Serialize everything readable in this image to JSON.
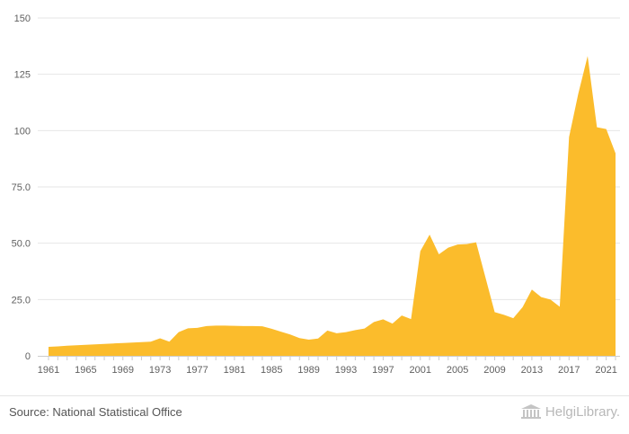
{
  "chart_data": {
    "type": "area",
    "x": [
      1961,
      1962,
      1963,
      1964,
      1965,
      1966,
      1967,
      1968,
      1969,
      1970,
      1971,
      1972,
      1973,
      1974,
      1975,
      1976,
      1977,
      1978,
      1979,
      1980,
      1981,
      1982,
      1983,
      1984,
      1985,
      1986,
      1987,
      1988,
      1989,
      1990,
      1991,
      1992,
      1993,
      1994,
      1995,
      1996,
      1997,
      1998,
      1999,
      2000,
      2001,
      2002,
      2003,
      2004,
      2005,
      2006,
      2007,
      2008,
      2009,
      2010,
      2011,
      2012,
      2013,
      2014,
      2015,
      2016,
      2017,
      2018,
      2019,
      2020,
      2021,
      2022
    ],
    "values": [
      4.0,
      4.2,
      4.5,
      4.7,
      4.9,
      5.1,
      5.3,
      5.5,
      5.7,
      5.9,
      6.1,
      6.3,
      7.8,
      6.3,
      10.5,
      12.2,
      12.4,
      13.2,
      13.4,
      13.4,
      13.3,
      13.2,
      13.2,
      13.1,
      12.0,
      10.7,
      9.5,
      7.9,
      7.2,
      7.7,
      11.2,
      10.0,
      10.5,
      11.4,
      12.1,
      15.0,
      16.2,
      14.3,
      17.9,
      16.3,
      46.5,
      53.8,
      45.1,
      48.0,
      49.4,
      49.6,
      50.4,
      34.9,
      19.4,
      18.2,
      16.7,
      21.6,
      29.4,
      26.1,
      25.0,
      21.8,
      97.1,
      116.5,
      133.1,
      101.5,
      100.7,
      89.9
    ],
    "ylim": [
      0,
      150
    ],
    "yticks": [
      "0",
      "25.0",
      "50.0",
      "75.0",
      "100",
      "125",
      "150"
    ],
    "xticks": [
      "1961",
      "1965",
      "1969",
      "1973",
      "1977",
      "1981",
      "1985",
      "1989",
      "1993",
      "1997",
      "2001",
      "2005",
      "2009",
      "2013",
      "2017",
      "2021"
    ],
    "grid": true,
    "fill_color": "#fbbc2c",
    "grid_color": "#e6e6e6",
    "axis_color": "#cccccc",
    "text_color": "#606060"
  },
  "footer": {
    "source": "Source: National Statistical Office",
    "brand": "HelgiLibrary."
  }
}
